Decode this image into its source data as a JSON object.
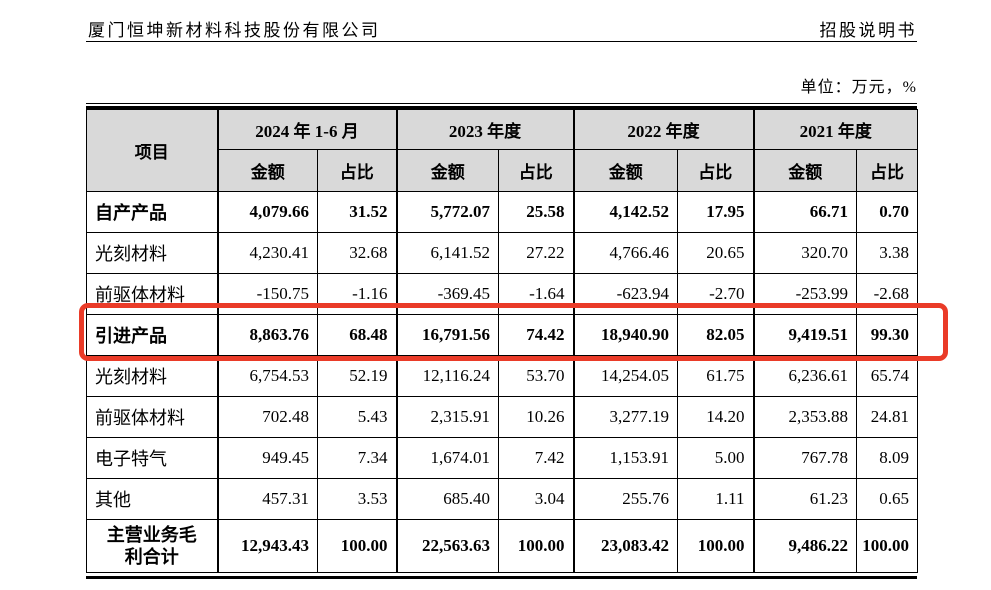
{
  "page_header": {
    "company": "厦门恒坤新材料科技股份有限公司",
    "doc_title": "招股说明书"
  },
  "unit_note": "单位：万元，%",
  "colors": {
    "highlight_red": "#ea3b28",
    "table_header_bg": "#d9d9d9"
  },
  "annotation": {
    "type": "red-highlight-box",
    "target_row": "引进产品"
  },
  "table": {
    "item_col_header": "项目",
    "period_headers": [
      "2024 年 1-6 月",
      "2023 年度",
      "2022 年度",
      "2021 年度"
    ],
    "sub_headers": [
      "金额",
      "占比"
    ],
    "rows": [
      {
        "label": "自产产品",
        "bold": true,
        "highlighted": false,
        "total": false,
        "values": [
          "4,079.66",
          "31.52",
          "5,772.07",
          "25.58",
          "4,142.52",
          "17.95",
          "66.71",
          "0.70"
        ]
      },
      {
        "label": "光刻材料",
        "bold": false,
        "highlighted": false,
        "total": false,
        "values": [
          "4,230.41",
          "32.68",
          "6,141.52",
          "27.22",
          "4,766.46",
          "20.65",
          "320.70",
          "3.38"
        ]
      },
      {
        "label": "前驱体材料",
        "bold": false,
        "highlighted": false,
        "total": false,
        "values": [
          "-150.75",
          "-1.16",
          "-369.45",
          "-1.64",
          "-623.94",
          "-2.70",
          "-253.99",
          "-2.68"
        ]
      },
      {
        "label": "引进产品",
        "bold": true,
        "highlighted": true,
        "total": false,
        "values": [
          "8,863.76",
          "68.48",
          "16,791.56",
          "74.42",
          "18,940.90",
          "82.05",
          "9,419.51",
          "99.30"
        ]
      },
      {
        "label": "光刻材料",
        "bold": false,
        "highlighted": false,
        "total": false,
        "values": [
          "6,754.53",
          "52.19",
          "12,116.24",
          "53.70",
          "14,254.05",
          "61.75",
          "6,236.61",
          "65.74"
        ]
      },
      {
        "label": "前驱体材料",
        "bold": false,
        "highlighted": false,
        "total": false,
        "values": [
          "702.48",
          "5.43",
          "2,315.91",
          "10.26",
          "3,277.19",
          "14.20",
          "2,353.88",
          "24.81"
        ]
      },
      {
        "label": "电子特气",
        "bold": false,
        "highlighted": false,
        "total": false,
        "values": [
          "949.45",
          "7.34",
          "1,674.01",
          "7.42",
          "1,153.91",
          "5.00",
          "767.78",
          "8.09"
        ]
      },
      {
        "label": "其他",
        "bold": false,
        "highlighted": false,
        "total": false,
        "values": [
          "457.31",
          "3.53",
          "685.40",
          "3.04",
          "255.76",
          "1.11",
          "61.23",
          "0.65"
        ]
      },
      {
        "label": "主营业务毛利合计",
        "bold": true,
        "highlighted": false,
        "total": true,
        "values": [
          "12,943.43",
          "100.00",
          "22,563.63",
          "100.00",
          "23,083.42",
          "100.00",
          "9,486.22",
          "100.00"
        ]
      }
    ]
  }
}
